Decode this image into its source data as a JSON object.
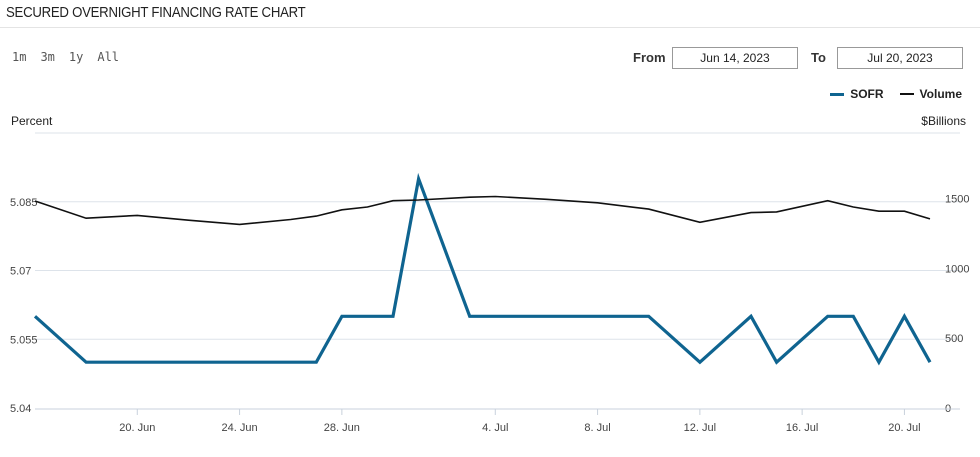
{
  "title": "SECURED OVERNIGHT FINANCING RATE CHART",
  "range_buttons": [
    "1m",
    "3m",
    "1y",
    "All"
  ],
  "date_range": {
    "from_label": "From",
    "from_value": "Jun 14, 2023",
    "to_label": "To",
    "to_value": "Jul 20, 2023"
  },
  "chart_data": {
    "type": "line",
    "left_axis_label": "Percent",
    "right_axis_label": "$Billions",
    "x_ticks": [
      "20. Jun",
      "24. Jun",
      "28. Jun",
      "4. Jul",
      "8. Jul",
      "12. Jul",
      "16. Jul",
      "20. Jul"
    ],
    "x_tick_dates": [
      "2023-06-20",
      "2023-06-24",
      "2023-06-28",
      "2023-07-04",
      "2023-07-08",
      "2023-07-12",
      "2023-07-16",
      "2023-07-20"
    ],
    "x_range": [
      "2023-06-16",
      "2023-07-21"
    ],
    "y_left": {
      "ticks": [
        "5.04",
        "5.055",
        "5.07",
        "5.085"
      ],
      "range": [
        5.04,
        5.1
      ]
    },
    "y_right": {
      "ticks": [
        "0",
        "500",
        "1000",
        "1500"
      ],
      "range": [
        0,
        1970
      ]
    },
    "grid": true,
    "legend_position": "top-right",
    "colors": {
      "sofr": "#0f6490",
      "volume": "#111111",
      "grid": "#dde3ea"
    },
    "series": [
      {
        "name": "SOFR",
        "axis": "left",
        "x": [
          "2023-06-16",
          "2023-06-18",
          "2023-06-20",
          "2023-06-22",
          "2023-06-24",
          "2023-06-26",
          "2023-06-27",
          "2023-06-28",
          "2023-06-29",
          "2023-06-30",
          "2023-07-01",
          "2023-07-03",
          "2023-07-04",
          "2023-07-06",
          "2023-07-08",
          "2023-07-10",
          "2023-07-12",
          "2023-07-14",
          "2023-07-15",
          "2023-07-17",
          "2023-07-18",
          "2023-07-19",
          "2023-07-20",
          "2023-07-21"
        ],
        "values": [
          5.06,
          5.05,
          5.05,
          5.05,
          5.05,
          5.05,
          5.05,
          5.06,
          5.06,
          5.06,
          5.09,
          5.06,
          5.06,
          5.06,
          5.06,
          5.06,
          5.05,
          5.06,
          5.05,
          5.06,
          5.06,
          5.05,
          5.06,
          5.05
        ]
      },
      {
        "name": "Volume",
        "axis": "right",
        "x": [
          "2023-06-16",
          "2023-06-18",
          "2023-06-20",
          "2023-06-22",
          "2023-06-24",
          "2023-06-26",
          "2023-06-27",
          "2023-06-28",
          "2023-06-29",
          "2023-06-30",
          "2023-07-01",
          "2023-07-03",
          "2023-07-04",
          "2023-07-06",
          "2023-07-08",
          "2023-07-10",
          "2023-07-12",
          "2023-07-14",
          "2023-07-15",
          "2023-07-17",
          "2023-07-18",
          "2023-07-19",
          "2023-07-20",
          "2023-07-21"
        ],
        "values": [
          1483,
          1360,
          1380,
          1345,
          1315,
          1350,
          1375,
          1420,
          1440,
          1485,
          1490,
          1510,
          1515,
          1495,
          1470,
          1425,
          1330,
          1400,
          1405,
          1485,
          1440,
          1410,
          1410,
          1355
        ]
      }
    ]
  }
}
